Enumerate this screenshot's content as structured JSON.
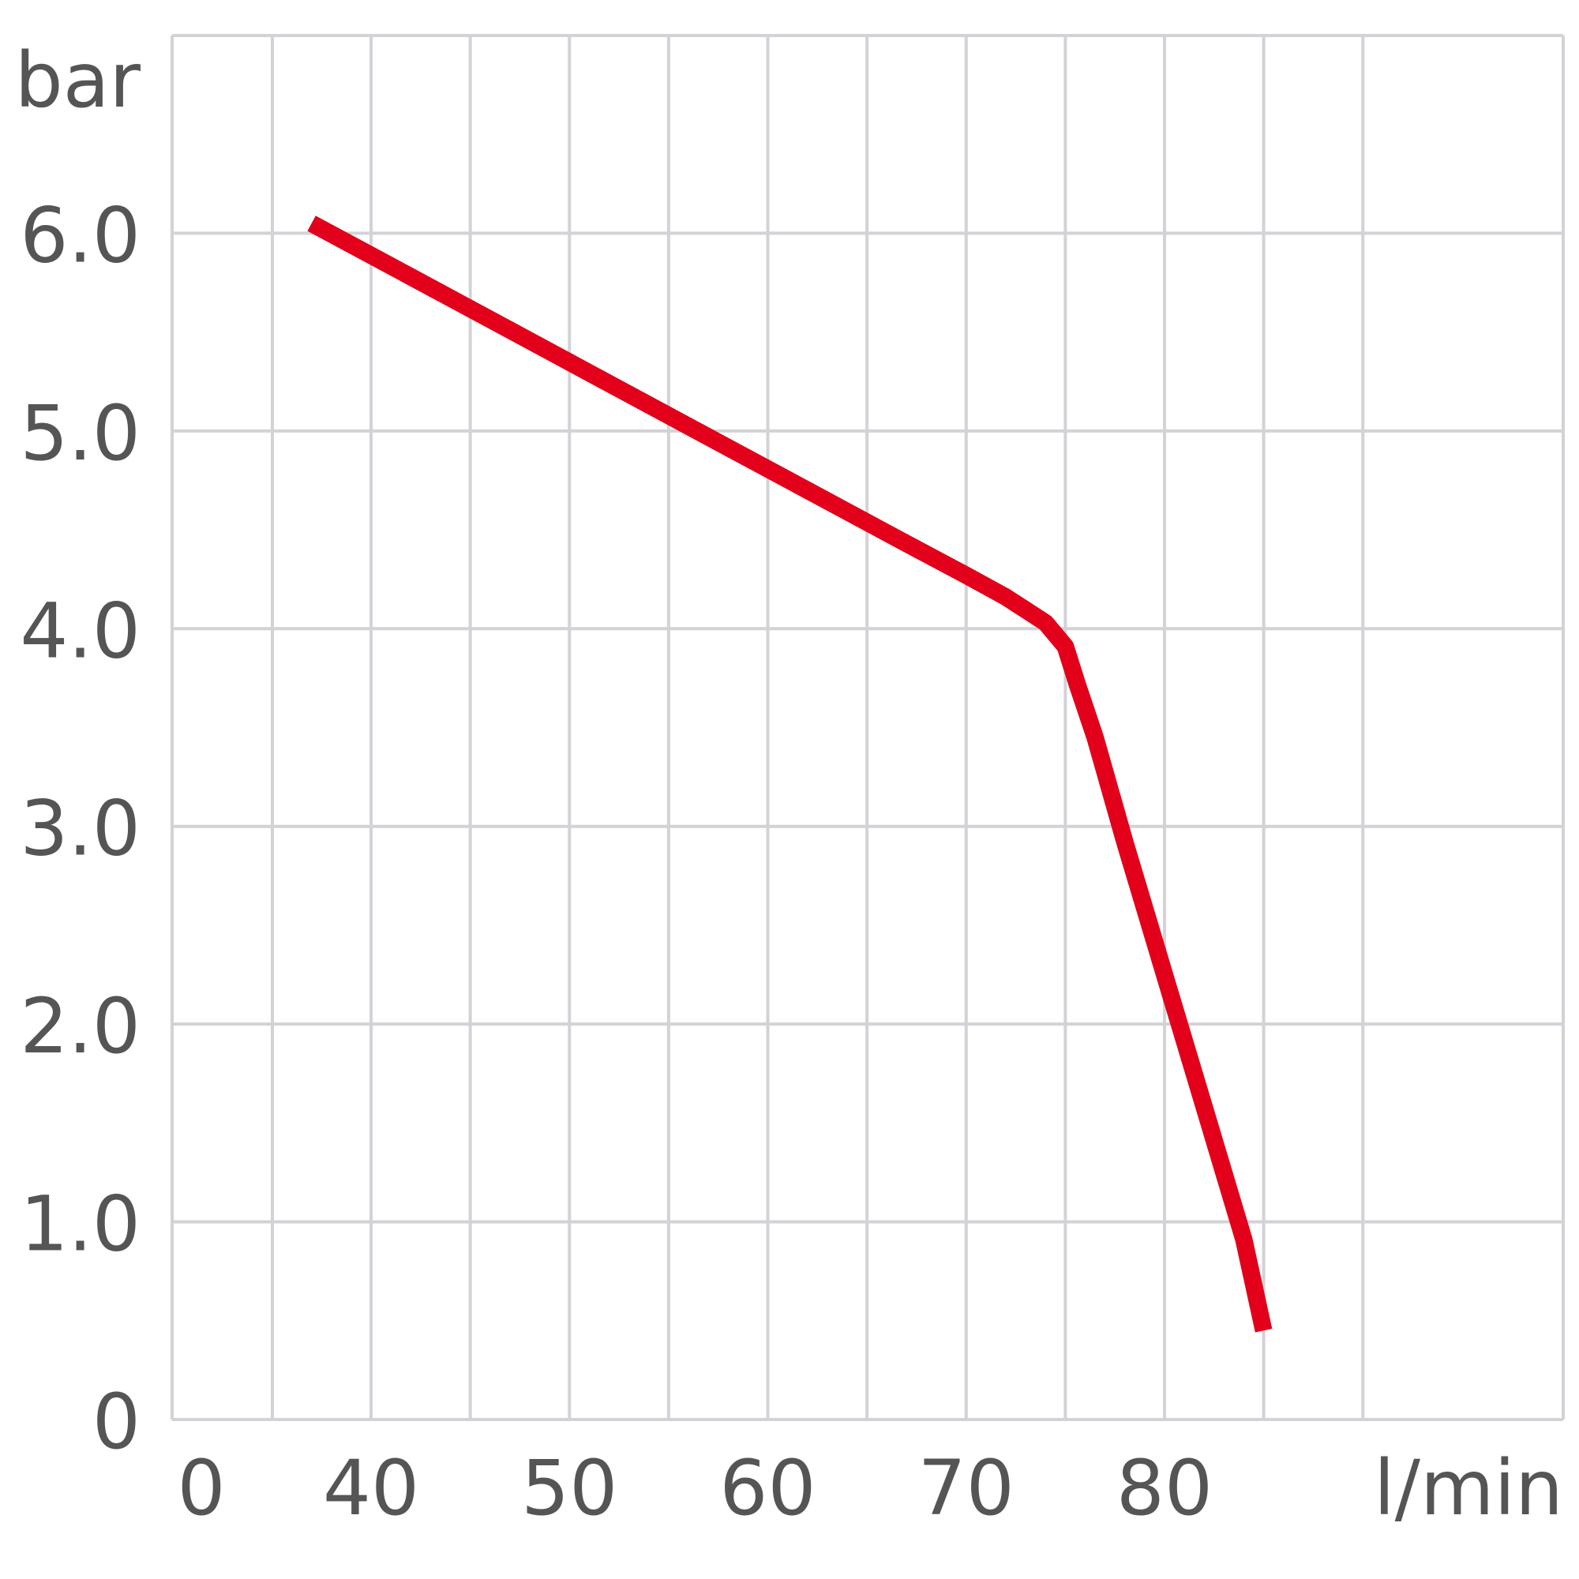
{
  "chart_data": {
    "type": "line",
    "title": "",
    "xlabel": "l/min",
    "ylabel": "bar",
    "x_tick_labels": [
      "0",
      "40",
      "50",
      "60",
      "70",
      "80"
    ],
    "y_tick_labels": [
      "0",
      "1.0",
      "2.0",
      "3.0",
      "4.0",
      "5.0",
      "6.0"
    ],
    "y_ticks": [
      0,
      1,
      2,
      3,
      4,
      5,
      6
    ],
    "xlim": [
      35,
      90
    ],
    "ylim": [
      0,
      7
    ],
    "x_scale_note_axis_break": true,
    "grid": true,
    "series": [
      {
        "color": "#e2001a",
        "x": [
          37,
          42,
          47,
          52,
          57,
          62,
          67,
          70,
          72,
          74,
          75,
          75.6,
          76.5,
          78,
          80,
          82,
          84,
          85
        ],
        "y": [
          6.05,
          5.78,
          5.51,
          5.24,
          4.97,
          4.7,
          4.43,
          4.27,
          4.16,
          4.03,
          3.91,
          3.72,
          3.45,
          2.92,
          2.25,
          1.58,
          0.91,
          0.45
        ]
      }
    ]
  }
}
